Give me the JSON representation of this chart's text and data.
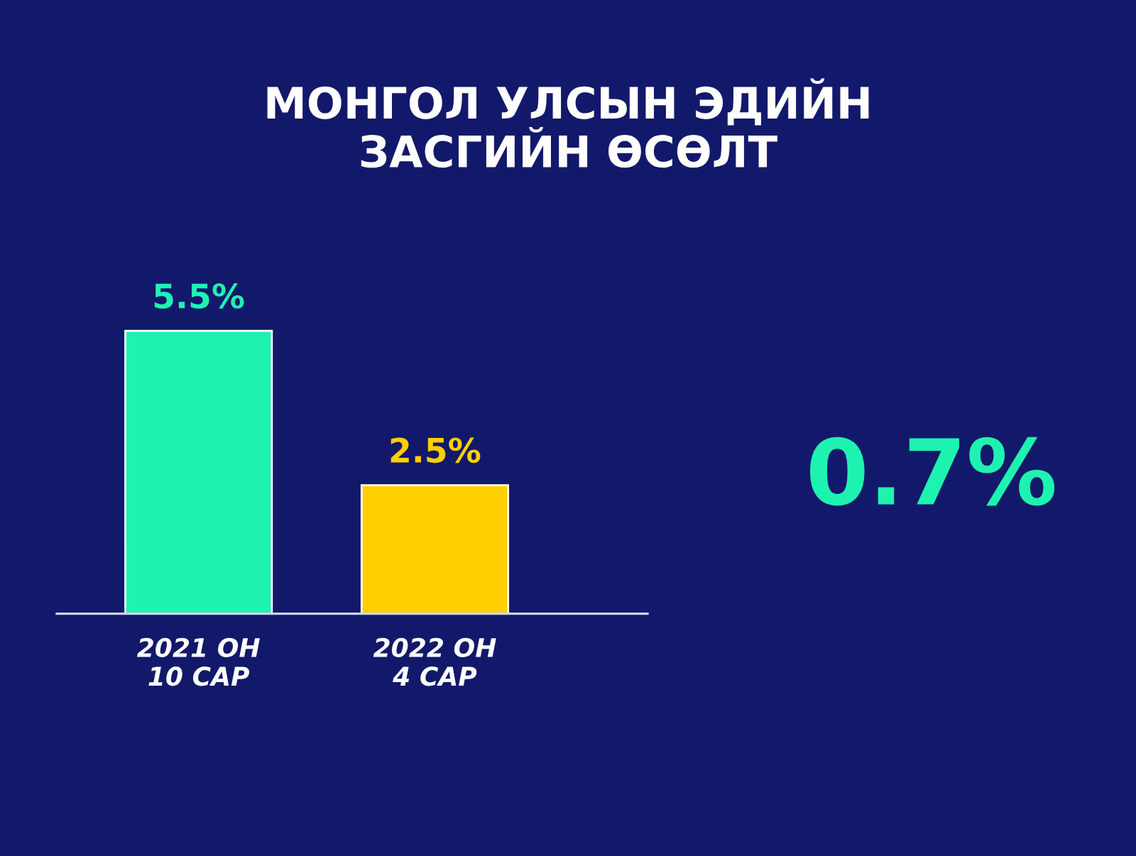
{
  "chart_data": {
    "type": "bar",
    "title": "МОНГОЛ УЛСЫН ЭДИЙН\nЗАСГИЙН ӨСӨЛТ",
    "categories": [
      "2021 ОН\n10 САР",
      "2022 ОН\n4 САР"
    ],
    "values": [
      5.5,
      2.5
    ],
    "colors": [
      "#1ef2b0",
      "#ffcf00"
    ],
    "value_labels": [
      "5.5%",
      "2.5%"
    ],
    "annotations": [
      "0.7%"
    ],
    "grid": false,
    "legend": false
  }
}
